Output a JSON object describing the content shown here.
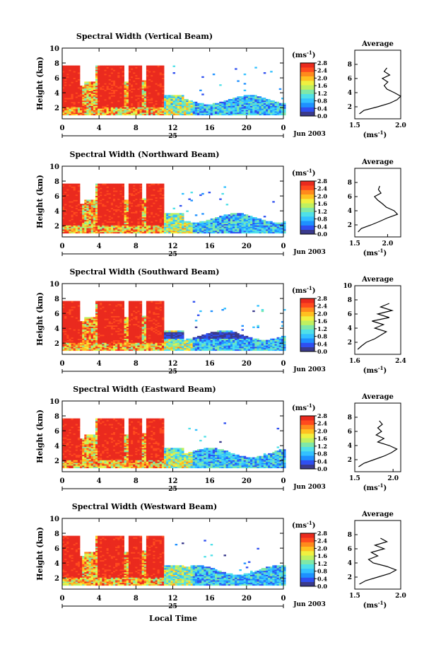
{
  "figure": {
    "footer_xlabel": "Local Time",
    "colorbar_unit": "(ms",
    "colorbar_unit_sup": "-1",
    "colorbar_unit_close": ")",
    "colorbar_ticks": [
      "0.0",
      "0.4",
      "0.8",
      "1.2",
      "1.6",
      "2.0",
      "2.4",
      "2.8"
    ],
    "colorbar_colors": [
      "#3a3a8c",
      "#2f4ff0",
      "#1e90ff",
      "#33c1ff",
      "#4fe0e8",
      "#7fe8a8",
      "#bff060",
      "#f0f040",
      "#ffc020",
      "#ff8a1c",
      "#ff4a1e",
      "#ea2a1e"
    ],
    "date_label": "Jun 2003",
    "day_label": "25",
    "avg_title": "Average",
    "avg_xlabel": "(ms",
    "avg_xlabel_sup": "-1",
    "avg_xlabel_close": ")"
  },
  "chart_data": [
    {
      "type": "heatmap",
      "title": "Spectral Width (Vertical Beam)",
      "ylabel": "Height (km)",
      "xlim": [
        0,
        24
      ],
      "ylim": [
        0.5,
        10
      ],
      "xticks": [
        "0",
        "4",
        "8",
        "12",
        "16",
        "20",
        "0"
      ],
      "yticks": [
        "2",
        "4",
        "6",
        "8",
        "10"
      ],
      "colorbar_range": [
        0.0,
        2.8
      ],
      "avg_profile": {
        "xlim": [
          1.5,
          2.0
        ],
        "xticks": [
          "1.5",
          "2.0"
        ],
        "yticks": [
          "2",
          "4",
          "6",
          "8"
        ],
        "height": [
          1.0,
          1.5,
          2.0,
          2.5,
          3.0,
          3.5,
          4.0,
          4.5,
          5.0,
          5.5,
          6.0,
          6.5,
          7.0,
          7.5
        ],
        "value": [
          1.55,
          1.6,
          1.75,
          1.88,
          1.96,
          2.0,
          1.93,
          1.85,
          1.82,
          1.86,
          1.8,
          1.88,
          1.82,
          1.85
        ]
      }
    },
    {
      "type": "heatmap",
      "title": "Spectral Width (Northward Beam)",
      "ylabel": "Height (km)",
      "xlim": [
        0,
        24
      ],
      "ylim": [
        0.5,
        10
      ],
      "xticks": [
        "0",
        "4",
        "8",
        "12",
        "16",
        "20",
        "0"
      ],
      "yticks": [
        "2",
        "4",
        "6",
        "8",
        "10"
      ],
      "colorbar_range": [
        0.0,
        2.8
      ],
      "avg_profile": {
        "xlim": [
          1.5,
          2.2
        ],
        "xticks": [
          "1.5",
          "2.0"
        ],
        "yticks": [
          "2",
          "4",
          "6",
          "8"
        ],
        "height": [
          1.0,
          1.5,
          2.0,
          2.5,
          3.0,
          3.5,
          4.0,
          4.5,
          5.0,
          5.5,
          6.0,
          6.5,
          7.0,
          7.5
        ],
        "value": [
          1.55,
          1.6,
          1.75,
          1.88,
          2.0,
          2.15,
          2.1,
          1.98,
          1.92,
          1.85,
          1.8,
          1.9,
          1.86,
          1.88
        ]
      }
    },
    {
      "type": "heatmap",
      "title": "Spectral Width (Southward Beam)",
      "ylabel": "Height (km)",
      "xlim": [
        0,
        24
      ],
      "ylim": [
        0.5,
        10
      ],
      "xticks": [
        "0",
        "4",
        "8",
        "12",
        "16",
        "20",
        "0"
      ],
      "yticks": [
        "2",
        "4",
        "6",
        "8",
        "10"
      ],
      "colorbar_range": [
        0.0,
        2.8
      ],
      "avg_profile": {
        "xlim": [
          1.6,
          2.4
        ],
        "xticks": [
          "1.6",
          "2.4"
        ],
        "yticks": [
          "2",
          "4",
          "6",
          "8",
          "10"
        ],
        "height": [
          1.0,
          1.5,
          2.0,
          2.5,
          3.0,
          3.5,
          4.0,
          4.5,
          5.0,
          5.5,
          6.0,
          6.5,
          7.0,
          7.5
        ],
        "value": [
          1.65,
          1.72,
          1.8,
          1.95,
          2.05,
          2.15,
          1.95,
          2.1,
          1.9,
          2.2,
          2.0,
          2.25,
          2.05,
          2.2
        ]
      }
    },
    {
      "type": "heatmap",
      "title": "Spectral Width (Eastward Beam)",
      "ylabel": "Height (km)",
      "xlim": [
        0,
        24
      ],
      "ylim": [
        0.5,
        10
      ],
      "xticks": [
        "0",
        "4",
        "8",
        "12",
        "16",
        "20",
        "0"
      ],
      "yticks": [
        "2",
        "4",
        "6",
        "8",
        "10"
      ],
      "colorbar_range": [
        0.0,
        2.8
      ],
      "avg_profile": {
        "xlim": [
          1.5,
          2.1
        ],
        "xticks": [
          "1.5",
          "2.0"
        ],
        "yticks": [
          "2",
          "4",
          "6",
          "8"
        ],
        "height": [
          1.0,
          1.5,
          2.0,
          2.5,
          3.0,
          3.5,
          4.0,
          4.5,
          5.0,
          5.5,
          6.0,
          6.5,
          7.0,
          7.5
        ],
        "value": [
          1.55,
          1.62,
          1.75,
          1.88,
          1.98,
          2.05,
          1.95,
          1.8,
          1.88,
          1.78,
          1.85,
          1.8,
          1.86,
          1.82
        ]
      }
    },
    {
      "type": "heatmap",
      "title": "Spectral Width (Westward Beam)",
      "ylabel": "Height (km)",
      "xlim": [
        0,
        24
      ],
      "ylim": [
        0.5,
        10
      ],
      "xticks": [
        "0",
        "4",
        "8",
        "12",
        "16",
        "20",
        "0"
      ],
      "yticks": [
        "2",
        "4",
        "6",
        "8",
        "10"
      ],
      "colorbar_range": [
        0.0,
        2.8
      ],
      "avg_profile": {
        "xlim": [
          1.5,
          2.0
        ],
        "xticks": [
          "1.5",
          "2.0"
        ],
        "yticks": [
          "2",
          "4",
          "6",
          "8"
        ],
        "height": [
          1.0,
          1.5,
          2.0,
          2.5,
          3.0,
          3.5,
          4.0,
          4.5,
          5.0,
          5.5,
          6.0,
          6.5,
          7.0,
          7.5
        ],
        "value": [
          1.55,
          1.62,
          1.75,
          1.88,
          1.95,
          1.85,
          1.7,
          1.65,
          1.75,
          1.68,
          1.82,
          1.72,
          1.85,
          1.78
        ]
      }
    }
  ]
}
